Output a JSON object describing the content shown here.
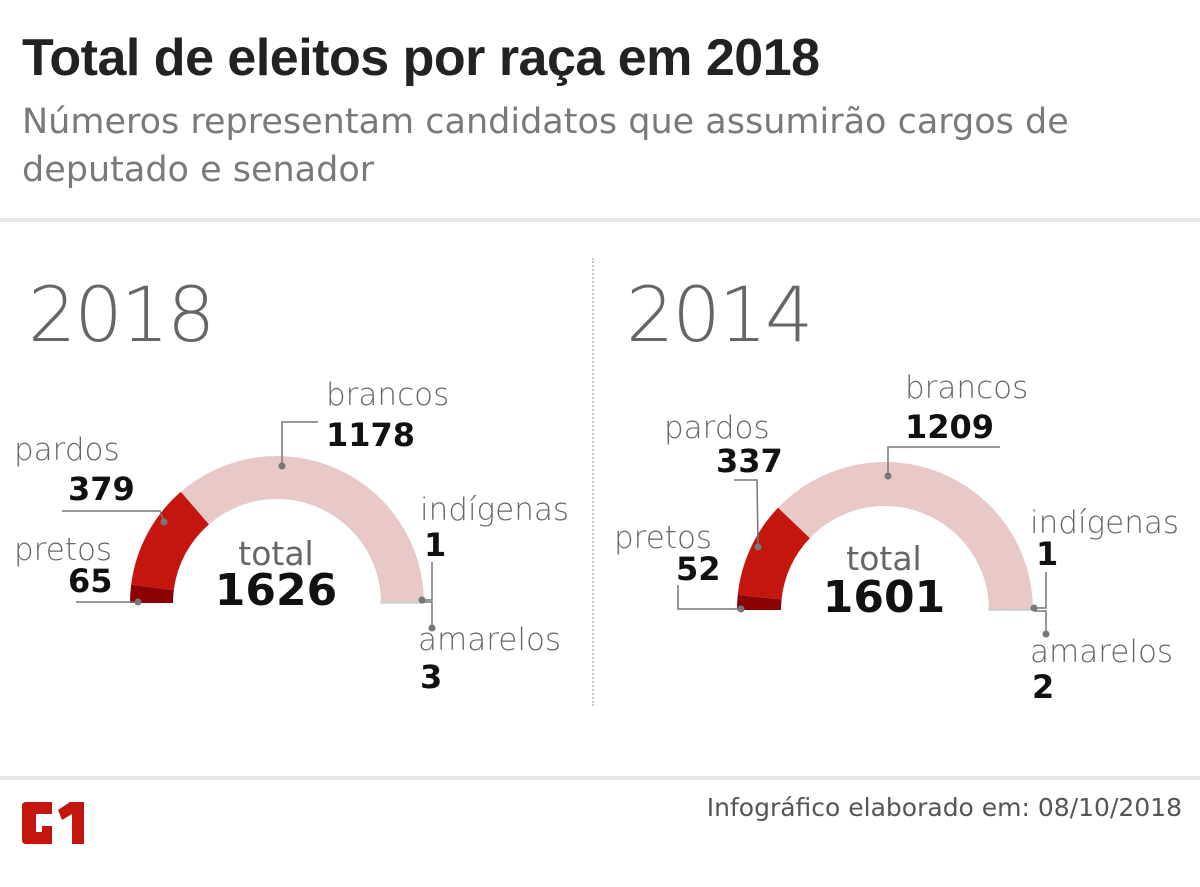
{
  "header": {
    "title": "Total de eleitos por raça em 2018",
    "subtitle": "Números representam candidatos que assumirão cargos de deputado e senador"
  },
  "footer": {
    "credit": "Infográfico elaborado em: 08/10/2018",
    "logo": "G1"
  },
  "colors": {
    "pretos": "#8b0000",
    "pardos": "#c4160e",
    "brancos": "#e9c8c8",
    "indigenas": "#d9d9d9",
    "amarelos": "#e4e4e4",
    "brand": "#c4160e"
  },
  "chart_data": [
    {
      "type": "pie",
      "subtype": "semi-donut",
      "title": "2018",
      "total_label": "total",
      "total": 1626,
      "categories": [
        "pretos",
        "pardos",
        "brancos",
        "indígenas",
        "amarelos"
      ],
      "values": [
        65,
        379,
        1178,
        1,
        3
      ]
    },
    {
      "type": "pie",
      "subtype": "semi-donut",
      "title": "2014",
      "total_label": "total",
      "total": 1601,
      "categories": [
        "pretos",
        "pardos",
        "brancos",
        "indígenas",
        "amarelos"
      ],
      "values": [
        52,
        337,
        1209,
        1,
        2
      ]
    }
  ]
}
